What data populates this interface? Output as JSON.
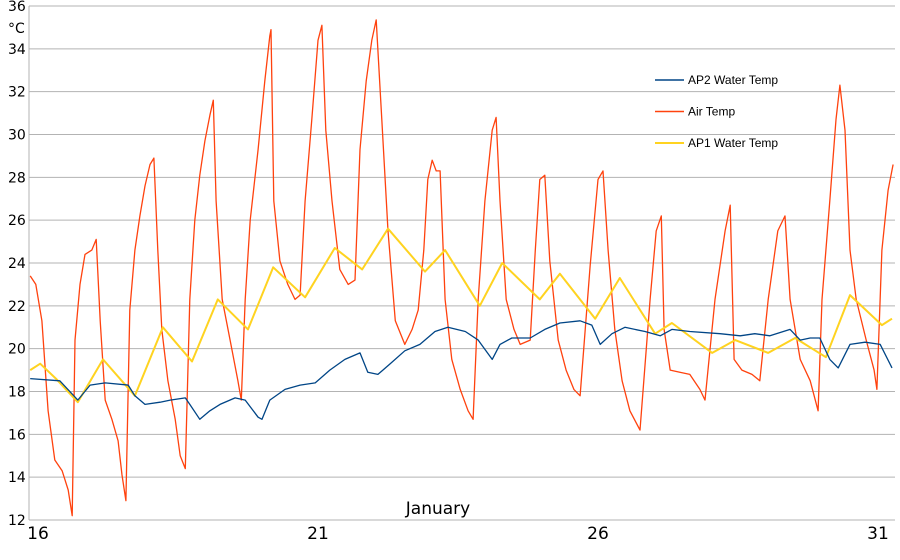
{
  "chart_data": {
    "type": "line",
    "title": "",
    "xlabel": "January",
    "ylabel": "°C",
    "xlim": [
      15.84,
      31.3
    ],
    "ylim": [
      12,
      36
    ],
    "yticks": [
      12,
      14,
      16,
      18,
      20,
      22,
      24,
      26,
      28,
      30,
      32,
      34,
      36
    ],
    "xticks": [
      16,
      21,
      26,
      31
    ],
    "grid": "horizontal",
    "legend_position": "right",
    "series": [
      {
        "name": "AP2 Water Temp",
        "color": "#004586",
        "points": [
          [
            15.86,
            18.6
          ],
          [
            16.39,
            18.5
          ],
          [
            16.71,
            17.6
          ],
          [
            16.93,
            18.3
          ],
          [
            17.2,
            18.4
          ],
          [
            17.61,
            18.3
          ],
          [
            17.73,
            17.8
          ],
          [
            17.91,
            17.4
          ],
          [
            18.18,
            17.5
          ],
          [
            18.36,
            17.6
          ],
          [
            18.63,
            17.7
          ],
          [
            18.71,
            17.4
          ],
          [
            18.89,
            16.7
          ],
          [
            19.07,
            17.1
          ],
          [
            19.25,
            17.4
          ],
          [
            19.52,
            17.7
          ],
          [
            19.7,
            17.6
          ],
          [
            19.93,
            16.8
          ],
          [
            20,
            16.7
          ],
          [
            20.14,
            17.6
          ],
          [
            20.41,
            18.1
          ],
          [
            20.68,
            18.3
          ],
          [
            20.95,
            18.4
          ],
          [
            21.21,
            19.0
          ],
          [
            21.48,
            19.5
          ],
          [
            21.75,
            19.8
          ],
          [
            21.89,
            18.9
          ],
          [
            22.07,
            18.8
          ],
          [
            22.29,
            19.3
          ],
          [
            22.55,
            19.9
          ],
          [
            22.82,
            20.2
          ],
          [
            23.09,
            20.8
          ],
          [
            23.32,
            21.0
          ],
          [
            23.63,
            20.8
          ],
          [
            23.86,
            20.4
          ],
          [
            24.11,
            19.5
          ],
          [
            24.25,
            20.2
          ],
          [
            24.46,
            20.5
          ],
          [
            24.79,
            20.5
          ],
          [
            25.05,
            20.9
          ],
          [
            25.32,
            21.2
          ],
          [
            25.68,
            21.3
          ],
          [
            25.89,
            21.1
          ],
          [
            26.04,
            20.2
          ],
          [
            26.25,
            20.7
          ],
          [
            26.48,
            21.0
          ],
          [
            26.84,
            20.8
          ],
          [
            27.11,
            20.6
          ],
          [
            27.32,
            20.9
          ],
          [
            27.64,
            20.8
          ],
          [
            28.18,
            20.7
          ],
          [
            28.54,
            20.6
          ],
          [
            28.8,
            20.7
          ],
          [
            29.07,
            20.6
          ],
          [
            29.43,
            20.9
          ],
          [
            29.61,
            20.4
          ],
          [
            29.79,
            20.5
          ],
          [
            29.96,
            20.5
          ],
          [
            30.14,
            19.5
          ],
          [
            30.29,
            19.1
          ],
          [
            30.5,
            20.2
          ],
          [
            30.77,
            20.3
          ],
          [
            31.04,
            20.2
          ],
          [
            31.25,
            19.1
          ]
        ]
      },
      {
        "name": "Air Temp",
        "color": "#ff420e",
        "points": [
          [
            15.86,
            23.4
          ],
          [
            15.96,
            23.0
          ],
          [
            16.07,
            21.3
          ],
          [
            16.18,
            17.1
          ],
          [
            16.3,
            14.8
          ],
          [
            16.43,
            14.3
          ],
          [
            16.54,
            13.4
          ],
          [
            16.61,
            12.2
          ],
          [
            16.66,
            20.4
          ],
          [
            16.75,
            23.0
          ],
          [
            16.84,
            24.4
          ],
          [
            16.96,
            24.6
          ],
          [
            17.04,
            25.1
          ],
          [
            17.11,
            21.3
          ],
          [
            17.2,
            17.6
          ],
          [
            17.32,
            16.7
          ],
          [
            17.43,
            15.7
          ],
          [
            17.5,
            14.1
          ],
          [
            17.57,
            12.9
          ],
          [
            17.64,
            21.8
          ],
          [
            17.73,
            24.6
          ],
          [
            17.82,
            26.2
          ],
          [
            17.91,
            27.6
          ],
          [
            18.0,
            28.6
          ],
          [
            18.07,
            28.9
          ],
          [
            18.14,
            24.6
          ],
          [
            18.21,
            20.9
          ],
          [
            18.32,
            18.5
          ],
          [
            18.45,
            16.7
          ],
          [
            18.54,
            15.0
          ],
          [
            18.63,
            14.4
          ],
          [
            18.71,
            22.3
          ],
          [
            18.8,
            26.0
          ],
          [
            18.89,
            28.1
          ],
          [
            18.98,
            29.7
          ],
          [
            19.07,
            30.9
          ],
          [
            19.13,
            31.6
          ],
          [
            19.18,
            26.9
          ],
          [
            19.29,
            22.3
          ],
          [
            19.43,
            20.4
          ],
          [
            19.57,
            18.5
          ],
          [
            19.63,
            17.6
          ],
          [
            19.7,
            22.3
          ],
          [
            19.79,
            26.0
          ],
          [
            19.93,
            29.3
          ],
          [
            20.05,
            32.5
          ],
          [
            20.14,
            34.6
          ],
          [
            20.16,
            34.9
          ],
          [
            20.21,
            26.9
          ],
          [
            20.32,
            24.1
          ],
          [
            20.46,
            23.0
          ],
          [
            20.59,
            22.3
          ],
          [
            20.68,
            22.5
          ],
          [
            20.77,
            26.9
          ],
          [
            20.89,
            30.7
          ],
          [
            21.0,
            34.4
          ],
          [
            21.07,
            35.1
          ],
          [
            21.14,
            30.2
          ],
          [
            21.25,
            26.9
          ],
          [
            21.39,
            23.7
          ],
          [
            21.54,
            23.0
          ],
          [
            21.66,
            23.2
          ],
          [
            21.75,
            29.3
          ],
          [
            21.86,
            32.5
          ],
          [
            21.96,
            34.4
          ],
          [
            22.04,
            35.35
          ],
          [
            22.14,
            30.7
          ],
          [
            22.25,
            25.5
          ],
          [
            22.38,
            21.3
          ],
          [
            22.55,
            20.2
          ],
          [
            22.68,
            20.9
          ],
          [
            22.79,
            21.8
          ],
          [
            22.89,
            24.6
          ],
          [
            22.96,
            27.9
          ],
          [
            23.04,
            28.8
          ],
          [
            23.11,
            28.3
          ],
          [
            23.18,
            28.3
          ],
          [
            23.27,
            22.3
          ],
          [
            23.39,
            19.5
          ],
          [
            23.54,
            18.1
          ],
          [
            23.68,
            17.1
          ],
          [
            23.77,
            16.7
          ],
          [
            23.86,
            22.3
          ],
          [
            23.98,
            26.9
          ],
          [
            24.11,
            30.2
          ],
          [
            24.18,
            30.8
          ],
          [
            24.25,
            26.9
          ],
          [
            24.36,
            22.3
          ],
          [
            24.5,
            20.9
          ],
          [
            24.61,
            20.2
          ],
          [
            24.79,
            20.4
          ],
          [
            24.88,
            24.6
          ],
          [
            24.96,
            27.9
          ],
          [
            25.05,
            28.1
          ],
          [
            25.14,
            24.1
          ],
          [
            25.29,
            20.4
          ],
          [
            25.43,
            19.0
          ],
          [
            25.57,
            18.1
          ],
          [
            25.68,
            17.8
          ],
          [
            25.86,
            23.9
          ],
          [
            26.0,
            27.9
          ],
          [
            26.09,
            28.3
          ],
          [
            26.18,
            24.6
          ],
          [
            26.3,
            20.9
          ],
          [
            26.43,
            18.5
          ],
          [
            26.57,
            17.1
          ],
          [
            26.75,
            16.2
          ],
          [
            26.93,
            22.3
          ],
          [
            27.04,
            25.5
          ],
          [
            27.13,
            26.2
          ],
          [
            27.18,
            20.9
          ],
          [
            27.29,
            19.0
          ],
          [
            27.46,
            18.9
          ],
          [
            27.64,
            18.8
          ],
          [
            27.82,
            18.1
          ],
          [
            27.91,
            17.6
          ],
          [
            28.09,
            22.3
          ],
          [
            28.27,
            25.5
          ],
          [
            28.36,
            26.7
          ],
          [
            28.43,
            19.5
          ],
          [
            28.57,
            19.0
          ],
          [
            28.75,
            18.8
          ],
          [
            28.89,
            18.5
          ],
          [
            29.04,
            22.3
          ],
          [
            29.21,
            25.5
          ],
          [
            29.34,
            26.2
          ],
          [
            29.43,
            22.3
          ],
          [
            29.61,
            19.5
          ],
          [
            29.79,
            18.5
          ],
          [
            29.93,
            17.1
          ],
          [
            30.0,
            22.3
          ],
          [
            30.14,
            26.9
          ],
          [
            30.25,
            30.7
          ],
          [
            30.32,
            32.3
          ],
          [
            30.41,
            30.2
          ],
          [
            30.5,
            24.6
          ],
          [
            30.61,
            22.3
          ],
          [
            30.79,
            20.4
          ],
          [
            30.93,
            19.0
          ],
          [
            30.98,
            18.1
          ],
          [
            31.07,
            24.6
          ],
          [
            31.18,
            27.4
          ],
          [
            31.27,
            28.6
          ]
        ]
      },
      {
        "name": "AP1 Water Temp",
        "color": "#ffd320",
        "points": [
          [
            15.86,
            19.0
          ],
          [
            16.04,
            19.3
          ],
          [
            16.32,
            18.6
          ],
          [
            16.71,
            17.5
          ],
          [
            17.16,
            19.5
          ],
          [
            17.73,
            17.8
          ],
          [
            18.23,
            21.0
          ],
          [
            18.75,
            19.4
          ],
          [
            19.21,
            22.3
          ],
          [
            19.75,
            20.9
          ],
          [
            20.2,
            23.8
          ],
          [
            20.77,
            22.4
          ],
          [
            21.3,
            24.7
          ],
          [
            21.79,
            23.7
          ],
          [
            22.25,
            25.6
          ],
          [
            22.91,
            23.6
          ],
          [
            23.27,
            24.6
          ],
          [
            23.89,
            22.0
          ],
          [
            24.29,
            24.0
          ],
          [
            24.96,
            22.3
          ],
          [
            25.32,
            23.5
          ],
          [
            25.95,
            21.4
          ],
          [
            26.39,
            23.3
          ],
          [
            27.02,
            20.7
          ],
          [
            27.32,
            21.2
          ],
          [
            28.04,
            19.8
          ],
          [
            28.45,
            20.4
          ],
          [
            29.04,
            19.8
          ],
          [
            29.52,
            20.5
          ],
          [
            30.07,
            19.6
          ],
          [
            30.5,
            22.5
          ],
          [
            31.07,
            21.1
          ],
          [
            31.25,
            21.4
          ]
        ]
      }
    ]
  }
}
